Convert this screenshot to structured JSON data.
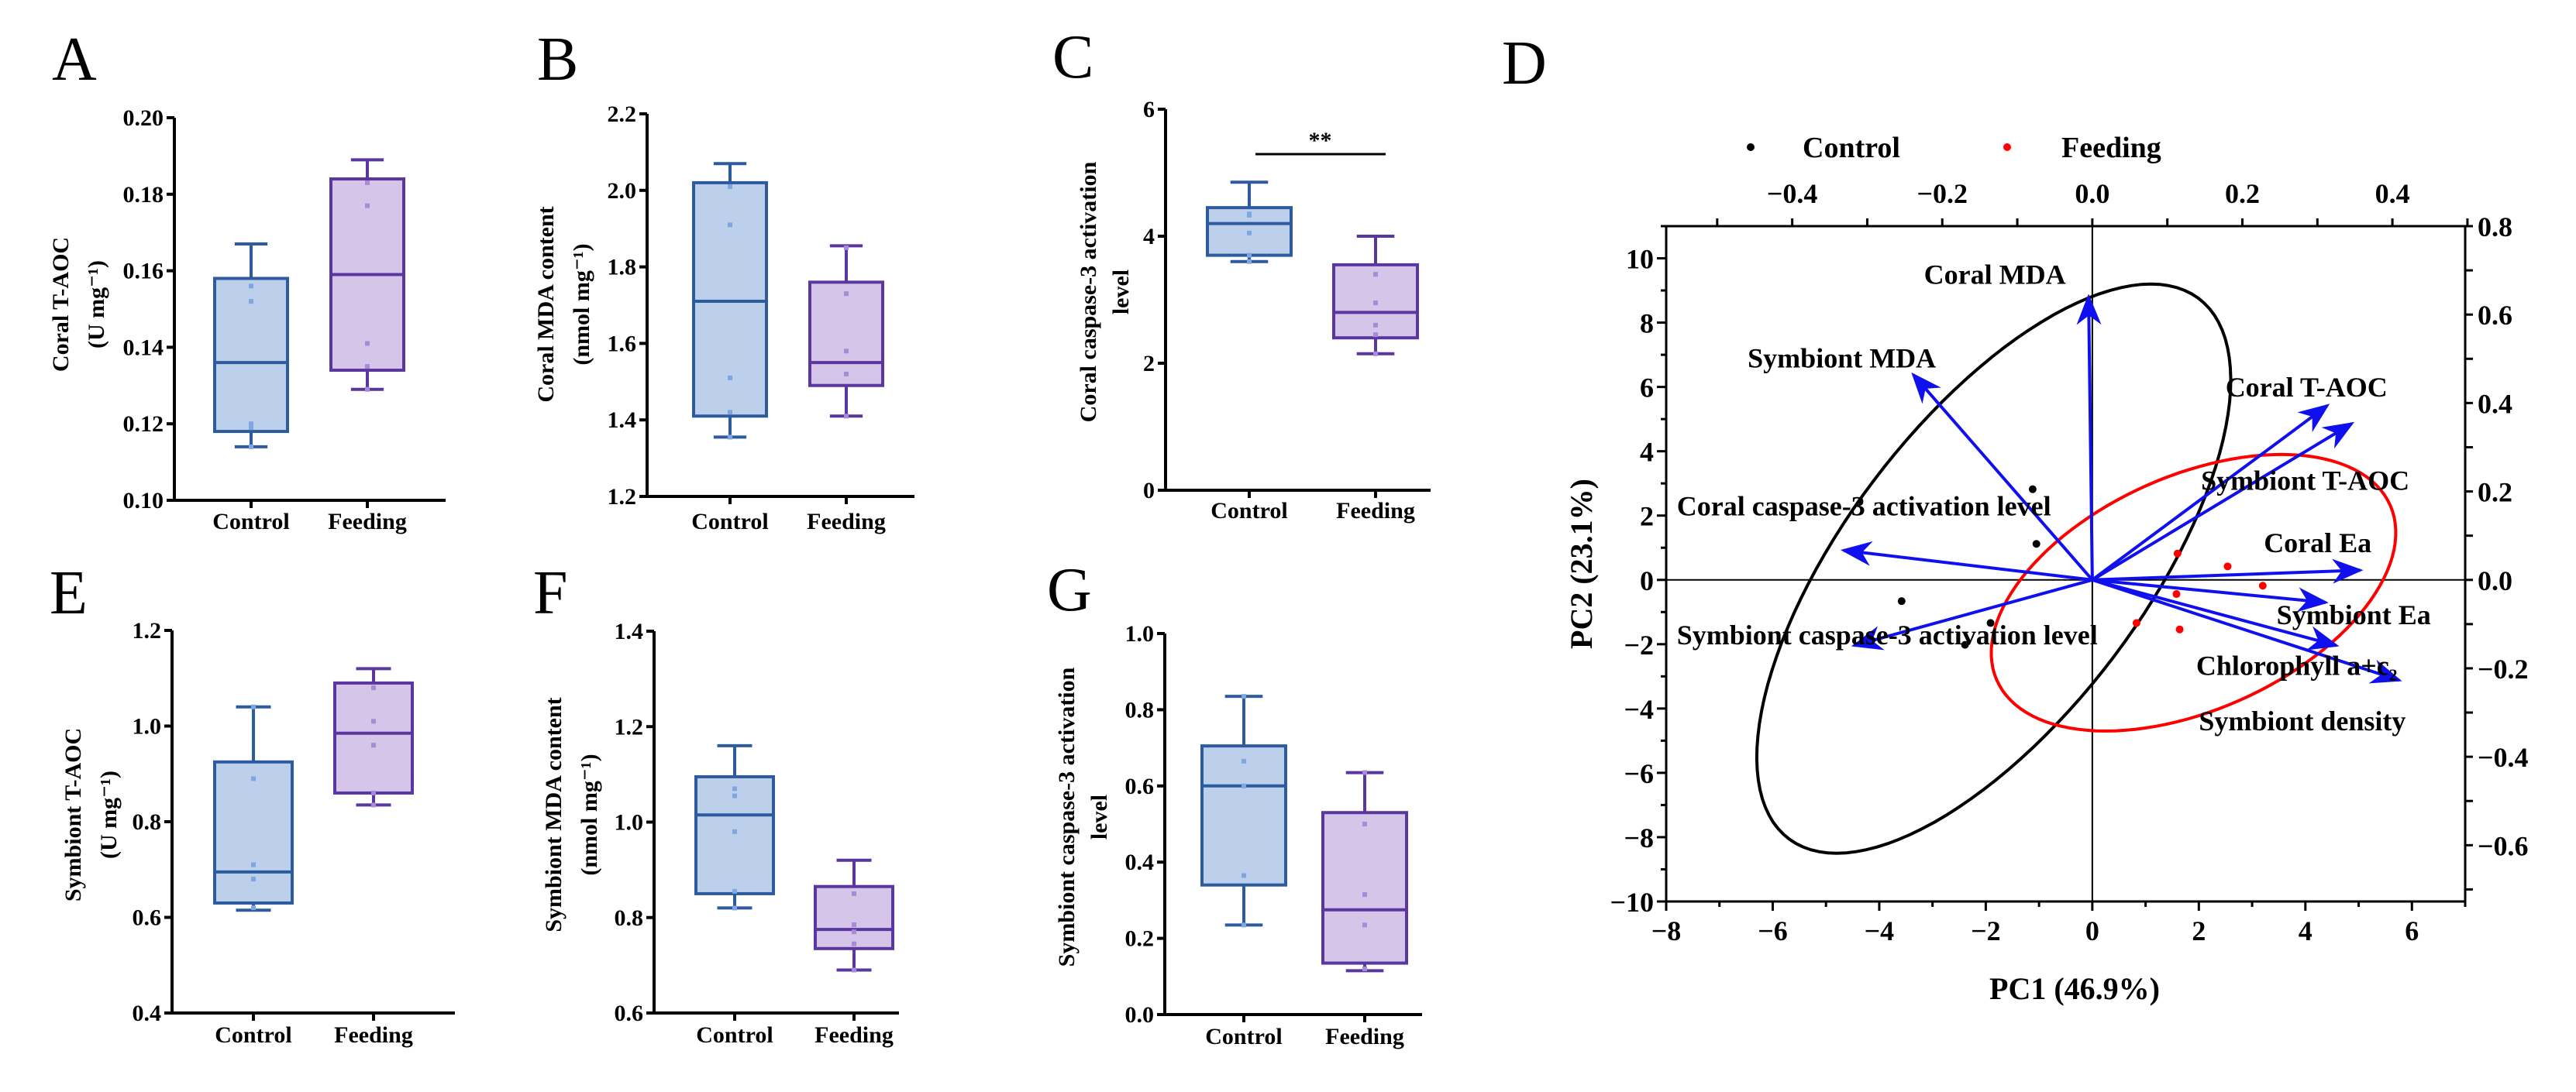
{
  "chart_data": [
    {
      "panel": "A",
      "type": "box",
      "ylabel": [
        "Coral T-AOC",
        "(U mg⁻¹)"
      ],
      "categories": [
        "Control",
        "Feeding"
      ],
      "ylim": [
        0.1,
        0.2
      ],
      "yticks": [
        "0.10",
        "0.12",
        "0.14",
        "0.16",
        "0.18",
        "0.20"
      ],
      "series": [
        {
          "name": "Control",
          "min": 0.114,
          "q1": 0.118,
          "median": 0.136,
          "q3": 0.158,
          "max": 0.167,
          "points": [
            0.156,
            0.152,
            0.12,
            0.119,
            0.114
          ]
        },
        {
          "name": "Feeding",
          "min": 0.129,
          "q1": 0.134,
          "median": 0.159,
          "q3": 0.184,
          "max": 0.189,
          "points": [
            0.183,
            0.177,
            0.141,
            0.135,
            0.129
          ]
        }
      ]
    },
    {
      "panel": "B",
      "type": "box",
      "ylabel": [
        "Coral MDA content",
        "(nmol mg⁻¹)"
      ],
      "categories": [
        "Control",
        "Feeding"
      ],
      "ylim": [
        1.2,
        2.2
      ],
      "yticks": [
        "1.2",
        "1.4",
        "1.6",
        "1.8",
        "2.0",
        "2.2"
      ],
      "series": [
        {
          "name": "Control",
          "min": 1.355,
          "q1": 1.41,
          "median": 1.71,
          "q3": 2.02,
          "max": 2.07,
          "points": [
            2.01,
            1.91,
            1.51,
            1.42,
            1.355
          ]
        },
        {
          "name": "Feeding",
          "min": 1.41,
          "q1": 1.49,
          "median": 1.55,
          "q3": 1.76,
          "max": 1.855,
          "points": [
            1.85,
            1.73,
            1.58,
            1.52,
            1.41
          ]
        }
      ]
    },
    {
      "panel": "C",
      "type": "box",
      "ylabel": [
        "Coral caspase-3 activation",
        "level"
      ],
      "categories": [
        "Control",
        "Feeding"
      ],
      "ylim": [
        0,
        6
      ],
      "yticks": [
        "0",
        "2",
        "4",
        "6"
      ],
      "significance": "**",
      "series": [
        {
          "name": "Control",
          "min": 3.6,
          "q1": 3.7,
          "median": 4.2,
          "q3": 4.45,
          "max": 4.85,
          "points": [
            4.35,
            4.33,
            4.05,
            3.7,
            3.6
          ]
        },
        {
          "name": "Feeding",
          "min": 2.15,
          "q1": 2.4,
          "median": 2.8,
          "q3": 3.55,
          "max": 4.0,
          "points": [
            3.4,
            2.95,
            2.6,
            2.45,
            2.15
          ]
        }
      ]
    },
    {
      "panel": "E",
      "type": "box",
      "ylabel": [
        "Symbiont T-AOC",
        "(U mg⁻¹)"
      ],
      "categories": [
        "Control",
        "Feeding"
      ],
      "ylim": [
        0.4,
        1.2
      ],
      "yticks": [
        "0.4",
        "0.6",
        "0.8",
        "1.0",
        "1.2"
      ],
      "series": [
        {
          "name": "Control",
          "min": 0.615,
          "q1": 0.63,
          "median": 0.695,
          "q3": 0.925,
          "max": 1.04,
          "points": [
            1.04,
            0.89,
            0.71,
            0.68,
            0.62
          ]
        },
        {
          "name": "Feeding",
          "min": 0.835,
          "q1": 0.86,
          "median": 0.985,
          "q3": 1.09,
          "max": 1.12,
          "points": [
            1.08,
            1.01,
            0.96,
            0.86,
            0.835
          ]
        }
      ]
    },
    {
      "panel": "F",
      "type": "box",
      "ylabel": [
        "Symbiont MDA content",
        "(nmol mg⁻¹)"
      ],
      "categories": [
        "Control",
        "Feeding"
      ],
      "ylim": [
        0.6,
        1.4
      ],
      "yticks": [
        "0.6",
        "0.8",
        "1.0",
        "1.2",
        "1.4"
      ],
      "series": [
        {
          "name": "Control",
          "min": 0.82,
          "q1": 0.85,
          "median": 1.015,
          "q3": 1.095,
          "max": 1.16,
          "points": [
            1.07,
            1.055,
            0.98,
            0.855,
            0.82
          ]
        },
        {
          "name": "Feeding",
          "min": 0.69,
          "q1": 0.735,
          "median": 0.775,
          "q3": 0.865,
          "max": 0.92,
          "points": [
            0.85,
            0.785,
            0.77,
            0.745,
            0.69
          ]
        }
      ]
    },
    {
      "panel": "G",
      "type": "box",
      "ylabel": [
        "Symbiont caspase-3 activation",
        "level"
      ],
      "categories": [
        "Control",
        "Feeding"
      ],
      "ylim": [
        0,
        1.0
      ],
      "yticks": [
        "0.0",
        "0.2",
        "0.4",
        "0.6",
        "0.8",
        "1.0"
      ],
      "series": [
        {
          "name": "Control",
          "min": 0.235,
          "q1": 0.34,
          "median": 0.6,
          "q3": 0.705,
          "max": 0.835,
          "points": [
            0.835,
            0.665,
            0.6,
            0.365,
            0.235
          ]
        },
        {
          "name": "Feeding",
          "min": 0.115,
          "q1": 0.135,
          "median": 0.275,
          "q3": 0.53,
          "max": 0.635,
          "points": [
            0.635,
            0.5,
            0.315,
            0.235,
            0.12
          ]
        }
      ]
    },
    {
      "panel": "D",
      "type": "scatter",
      "subtype": "pca-biplot",
      "xlabel": "PC1 (46.9%)",
      "ylabel": "PC2 (23.1%)",
      "xlim": [
        -8,
        7
      ],
      "ylim": [
        -10,
        11
      ],
      "xticks": [
        "−8",
        "−6",
        "−4",
        "−2",
        "0",
        "2",
        "4",
        "6"
      ],
      "yticks": [
        "−10",
        "−8",
        "−6",
        "−4",
        "−2",
        "0",
        "2",
        "4",
        "6",
        "8",
        "10"
      ],
      "top_axis": {
        "ticks": [
          "−0.4",
          "−0.2",
          "0.0",
          "0.2",
          "0.4"
        ],
        "values": [
          -0.4,
          -0.2,
          0.0,
          0.2,
          0.4
        ]
      },
      "right_axis": {
        "ticks": [
          "−0.6",
          "−0.4",
          "−0.2",
          "0.0",
          "0.2",
          "0.4",
          "0.6",
          "0.8"
        ],
        "values": [
          -0.6,
          -0.4,
          -0.2,
          0.0,
          0.2,
          0.4,
          0.6,
          0.8
        ]
      },
      "legend": {
        "position": "top",
        "entries": [
          {
            "name": "Control",
            "color": "#000000"
          },
          {
            "name": "Feeding",
            "color": "#ff0000"
          }
        ]
      },
      "groups": [
        {
          "name": "Control",
          "color": "#000000",
          "points": [
            [
              -1.12,
              2.82
            ],
            [
              -1.05,
              1.12
            ],
            [
              -3.58,
              -0.66
            ],
            [
              -1.91,
              -1.34
            ],
            [
              -2.39,
              -2.02
            ]
          ],
          "ellipse": {
            "center": [
              -1.85,
              0.35
            ],
            "axis1": [
              2.95,
              8.85
            ],
            "axis2": [
              3.33,
              0
            ]
          }
        },
        {
          "name": "Feeding",
          "color": "#ff0000",
          "points": [
            [
              1.6,
              0.82
            ],
            [
              2.54,
              0.42
            ],
            [
              3.2,
              -0.18
            ],
            [
              1.58,
              -0.44
            ],
            [
              0.83,
              -1.34
            ],
            [
              1.64,
              -1.54
            ]
          ],
          "ellipse": {
            "center": [
              1.9,
              -0.4
            ],
            "axis1": [
              1.65,
              4.3
            ],
            "axis2": [
              3.42,
              0
            ]
          }
        }
      ],
      "loading_color": "#1010ee",
      "loadings": [
        {
          "name": "Coral MDA",
          "x": -0.07,
          "y": 8.8
        },
        {
          "name": "Symbiont MDA",
          "x": -3.36,
          "y": 6.38
        },
        {
          "name": "Coral T-AOC",
          "x": 4.41,
          "y": 5.42
        },
        {
          "name": "Symbiont T-AOC",
          "x": 4.87,
          "y": 4.86
        },
        {
          "name": "Coral caspase-3 activation level",
          "x": -4.67,
          "y": 0.92
        },
        {
          "name": "Coral Ea",
          "x": 5.03,
          "y": 0.3
        },
        {
          "name": "Symbiont Ea",
          "x": 4.38,
          "y": -0.7
        },
        {
          "name": "Symbiont caspase-3 activation level",
          "x": -4.47,
          "y": -2.04
        },
        {
          "name": "Chlorophyll a+c₂",
          "x": 4.58,
          "y": -2.04
        },
        {
          "name": "Symbiont density",
          "x": 5.76,
          "y": -3.12
        }
      ]
    }
  ],
  "colors": {
    "control_fill": "#bccfeb",
    "control_stroke": "#2d5b9f",
    "control_point": "#7fa6e0",
    "feeding_fill": "#d5c5e9",
    "feeding_stroke": "#5a36a0",
    "feeding_point": "#a98ad8"
  }
}
